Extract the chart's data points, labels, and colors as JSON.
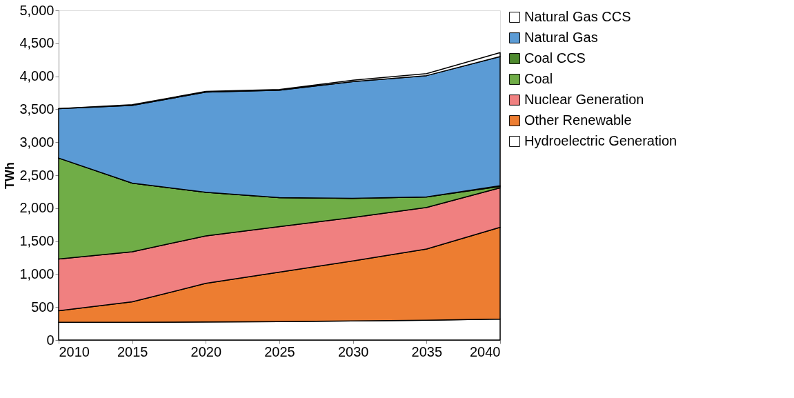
{
  "chart_data": {
    "type": "area",
    "stacked": true,
    "ylabel": "TWh",
    "x": [
      2010,
      2015,
      2020,
      2025,
      2030,
      2035,
      2040
    ],
    "xlim": [
      2010,
      2040
    ],
    "xticks": [
      2010,
      2015,
      2020,
      2025,
      2030,
      2035,
      2040
    ],
    "ylim": [
      0,
      5000
    ],
    "yticks": [
      0,
      500,
      {
        "value": 1000,
        "label": "1,000"
      },
      {
        "value": 1500,
        "label": "1,500"
      },
      {
        "value": 2000,
        "label": "2,000"
      },
      {
        "value": 2500,
        "label": "2,500"
      },
      {
        "value": 3000,
        "label": "3,000"
      },
      {
        "value": 3500,
        "label": "3,500"
      },
      {
        "value": 4000,
        "label": "4,000"
      },
      {
        "value": 4500,
        "label": "4,500"
      },
      {
        "value": 5000,
        "label": "5,000"
      }
    ],
    "grid": false,
    "legend": "right",
    "series": [
      {
        "name": "Hydroelectric Generation",
        "color": "#ffffff",
        "values": [
          270,
          270,
          275,
          280,
          290,
          300,
          320
        ]
      },
      {
        "name": "Other Renewable",
        "color": "#ed7d31",
        "values": [
          175,
          310,
          585,
          750,
          910,
          1080,
          1390
        ]
      },
      {
        "name": "Nuclear Generation",
        "color": "#f08080",
        "values": [
          785,
          760,
          720,
          690,
          660,
          630,
          600
        ]
      },
      {
        "name": "Coal",
        "color": "#70ad47",
        "values": [
          1530,
          1040,
          660,
          440,
          290,
          160,
          20
        ]
      },
      {
        "name": "Coal CCS",
        "color": "#4e8a2e",
        "values": [
          0,
          0,
          0,
          0,
          0,
          0,
          10
        ]
      },
      {
        "name": "Natural Gas",
        "color": "#5b9bd5",
        "values": [
          750,
          1180,
          1520,
          1630,
          1770,
          1840,
          1960
        ]
      },
      {
        "name": "Natural Gas CCS",
        "color": "#ffffff",
        "values": [
          0,
          10,
          10,
          10,
          20,
          30,
          60
        ]
      }
    ]
  }
}
